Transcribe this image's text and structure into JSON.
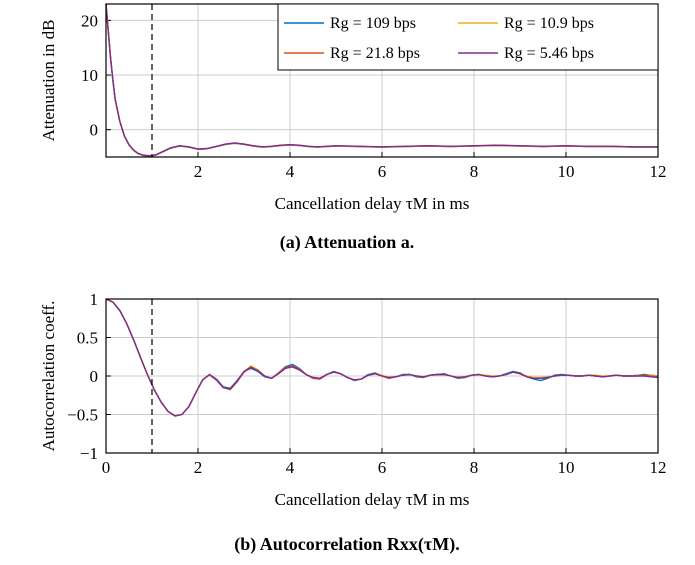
{
  "chart_data": [
    {
      "type": "line",
      "xlabel": "Cancellation delay τM in ms",
      "ylabel": "Attenuation in dB",
      "caption": "(a) Attenuation a.",
      "xlim": [
        0,
        12
      ],
      "ylim": [
        -5,
        23
      ],
      "xticks": [
        "2",
        "4",
        "6",
        "8",
        "10",
        "12"
      ],
      "yticks": [
        "20",
        "10",
        "0"
      ],
      "grid": true,
      "marker_line_x": 1.0,
      "legend_position": "top-right",
      "series": [
        {
          "name": "Rg = 109 bps",
          "color": "#0072bd"
        },
        {
          "name": "Rg = 10.9 bps",
          "color": "#edb120"
        },
        {
          "name": "Rg = 21.8 bps",
          "color": "#d95319"
        },
        {
          "name": "Rg = 5.46 bps",
          "color": "#7e2f8e"
        }
      ],
      "x": [
        0,
        0.05,
        0.1,
        0.15,
        0.2,
        0.3,
        0.4,
        0.5,
        0.6,
        0.7,
        0.8,
        0.9,
        1.0,
        1.1,
        1.2,
        1.4,
        1.6,
        1.8,
        2.0,
        2.2,
        2.4,
        2.6,
        2.8,
        3.0,
        3.2,
        3.4,
        3.6,
        3.8,
        4.0,
        4.2,
        4.4,
        4.6,
        4.8,
        5.0,
        5.5,
        6.0,
        6.5,
        7.0,
        7.5,
        8.0,
        8.5,
        9.0,
        9.5,
        10.0,
        10.5,
        11.0,
        11.5,
        12.0
      ],
      "values": [
        23,
        18,
        13,
        9,
        5.5,
        1.5,
        -1.2,
        -2.8,
        -3.8,
        -4.4,
        -4.7,
        -4.8,
        -4.8,
        -4.6,
        -4.2,
        -3.4,
        -3.0,
        -3.2,
        -3.6,
        -3.5,
        -3.1,
        -2.7,
        -2.5,
        -2.7,
        -3.0,
        -3.2,
        -3.1,
        -2.9,
        -2.8,
        -2.9,
        -3.1,
        -3.2,
        -3.1,
        -3.0,
        -3.1,
        -3.2,
        -3.1,
        -3.0,
        -3.1,
        -3.0,
        -2.9,
        -3.0,
        -3.1,
        -3.0,
        -3.1,
        -3.1,
        -3.2,
        -3.2
      ]
    },
    {
      "type": "line",
      "xlabel": "Cancellation delay τM in ms",
      "ylabel": "Autocorrelation coeff.",
      "caption": "(b) Autocorrelation Rxx(τM).",
      "xlim": [
        0,
        12
      ],
      "ylim": [
        -1,
        1
      ],
      "xticks": [
        "0",
        "2",
        "4",
        "6",
        "8",
        "10",
        "12"
      ],
      "yticks": [
        "1",
        "0.5",
        "0",
        "−0.5",
        "−1"
      ],
      "grid": true,
      "marker_line_x": 1.0,
      "series": [
        {
          "name": "Rg = 109 bps",
          "color": "#0072bd",
          "values": [
            1.0,
            0.96,
            0.85,
            0.68,
            0.47,
            0.24,
            0.02,
            -0.18,
            -0.34,
            -0.46,
            -0.52,
            -0.5,
            -0.4,
            -0.22,
            -0.05,
            0.02,
            -0.04,
            -0.14,
            -0.16,
            -0.06,
            0.06,
            0.1,
            0.06,
            -0.01,
            -0.03,
            0.04,
            0.12,
            0.15,
            0.1,
            0.02,
            -0.03,
            -0.04,
            0.02,
            0.06,
            0.03,
            -0.02,
            -0.06,
            -0.04,
            0.02,
            0.04,
            0.0,
            -0.03,
            -0.01,
            0.02,
            0.02,
            -0.01,
            -0.02,
            0.01,
            0.02,
            0.03,
            0.0,
            -0.03,
            -0.02,
            0.01,
            0.02,
            0.0,
            -0.01,
            0.0,
            0.03,
            0.06,
            0.04,
            -0.01,
            -0.04,
            -0.06,
            -0.03,
            0.01,
            0.02,
            0.01,
            0.0,
            0.0,
            0.01,
            0.0,
            -0.01,
            0.0,
            0.01,
            0.0,
            0.0,
            0.01,
            0.02,
            0.01,
            0.0
          ]
        },
        {
          "name": "Rg = 10.9 bps",
          "color": "#edb120",
          "values": [
            1.0,
            0.96,
            0.85,
            0.68,
            0.47,
            0.24,
            0.02,
            -0.18,
            -0.34,
            -0.46,
            -0.52,
            -0.5,
            -0.4,
            -0.22,
            -0.05,
            0.01,
            -0.05,
            -0.15,
            -0.18,
            -0.08,
            0.06,
            0.13,
            0.08,
            0.0,
            -0.03,
            0.03,
            0.1,
            0.12,
            0.08,
            0.02,
            -0.02,
            -0.03,
            0.02,
            0.05,
            0.03,
            -0.02,
            -0.05,
            -0.04,
            0.01,
            0.03,
            0.01,
            -0.02,
            -0.01,
            0.01,
            0.02,
            0.0,
            -0.01,
            0.01,
            0.02,
            0.02,
            0.0,
            -0.02,
            -0.01,
            0.01,
            0.02,
            0.01,
            0.0,
            0.0,
            0.02,
            0.05,
            0.03,
            0.0,
            -0.02,
            -0.02,
            -0.01,
            0.0,
            0.01,
            0.01,
            0.0,
            0.0,
            0.01,
            0.01,
            0.0,
            0.0,
            0.01,
            0.0,
            0.0,
            0.01,
            0.01,
            0.01,
            0.0
          ]
        },
        {
          "name": "Rg = 21.8 bps",
          "color": "#d95319",
          "values": [
            1.0,
            0.96,
            0.85,
            0.68,
            0.47,
            0.24,
            0.02,
            -0.18,
            -0.34,
            -0.46,
            -0.52,
            -0.5,
            -0.4,
            -0.22,
            -0.05,
            0.02,
            -0.05,
            -0.15,
            -0.17,
            -0.07,
            0.06,
            0.12,
            0.07,
            0.0,
            -0.03,
            0.04,
            0.11,
            0.13,
            0.09,
            0.02,
            -0.03,
            -0.04,
            0.02,
            0.05,
            0.03,
            -0.02,
            -0.05,
            -0.04,
            0.01,
            0.03,
            0.0,
            -0.03,
            -0.01,
            0.01,
            0.02,
            0.0,
            -0.02,
            0.01,
            0.02,
            0.02,
            0.0,
            -0.02,
            -0.02,
            0.01,
            0.02,
            0.0,
            -0.01,
            0.0,
            0.02,
            0.05,
            0.03,
            -0.01,
            -0.03,
            -0.03,
            -0.02,
            0.0,
            0.01,
            0.01,
            0.0,
            0.0,
            0.01,
            0.0,
            -0.01,
            0.0,
            0.01,
            0.0,
            0.0,
            0.0,
            0.01,
            0.0,
            -0.01
          ]
        },
        {
          "name": "Rg = 5.46 bps",
          "color": "#7e2f8e",
          "values": [
            1.0,
            0.96,
            0.85,
            0.68,
            0.47,
            0.24,
            0.02,
            -0.18,
            -0.34,
            -0.46,
            -0.52,
            -0.5,
            -0.4,
            -0.22,
            -0.05,
            0.02,
            -0.05,
            -0.15,
            -0.17,
            -0.07,
            0.05,
            0.11,
            0.07,
            0.0,
            -0.03,
            0.03,
            0.1,
            0.12,
            0.08,
            0.02,
            -0.02,
            -0.03,
            0.02,
            0.05,
            0.03,
            -0.02,
            -0.05,
            -0.04,
            0.01,
            0.03,
            0.0,
            -0.02,
            -0.01,
            0.01,
            0.02,
            0.0,
            -0.01,
            0.01,
            0.02,
            0.02,
            0.0,
            -0.02,
            -0.01,
            0.01,
            0.02,
            0.0,
            -0.01,
            0.0,
            0.02,
            0.05,
            0.03,
            -0.01,
            -0.03,
            -0.03,
            -0.02,
            0.0,
            0.01,
            0.01,
            0.0,
            0.0,
            0.01,
            0.0,
            -0.01,
            0.0,
            0.01,
            0.0,
            0.0,
            0.0,
            0.0,
            -0.01,
            -0.02
          ]
        }
      ],
      "x_step": 0.15
    }
  ]
}
